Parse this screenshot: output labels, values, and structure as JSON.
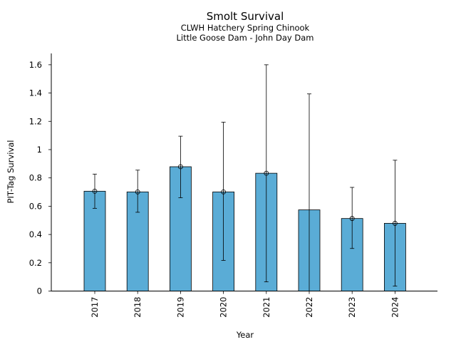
{
  "chart_data": {
    "type": "bar",
    "title": "Smolt Survival",
    "subtitle_lines": [
      "CLWH Hatchery Spring Chinook",
      "Little Goose Dam - John Day Dam"
    ],
    "xlabel": "Year",
    "ylabel": "PIT-Tag Survival",
    "categories": [
      "2017",
      "2018",
      "2019",
      "2020",
      "2021",
      "2022",
      "2023",
      "2024"
    ],
    "values": [
      0.706,
      0.701,
      0.879,
      0.701,
      0.833,
      0.574,
      0.513,
      0.479
    ],
    "error_lower": [
      0.585,
      0.557,
      0.66,
      0.217,
      0.065,
      null,
      0.301,
      0.035
    ],
    "error_upper": [
      0.827,
      0.855,
      1.095,
      1.194,
      1.6,
      1.394,
      0.733,
      0.925
    ],
    "point_markers": [
      true,
      true,
      true,
      true,
      true,
      false,
      true,
      true
    ],
    "ylim": [
      0,
      1.68
    ],
    "yticks": [
      0,
      0.2,
      0.4,
      0.6,
      0.8,
      1,
      1.2,
      1.4,
      1.6
    ],
    "ytick_labels": [
      "0",
      "0.2",
      "0.4",
      "0.6",
      "0.8",
      "1",
      "1.2",
      "1.4",
      "1.6"
    ],
    "bar_color": "#5aacd6",
    "edge_color": "#000000",
    "grid": false,
    "legend": "none"
  }
}
